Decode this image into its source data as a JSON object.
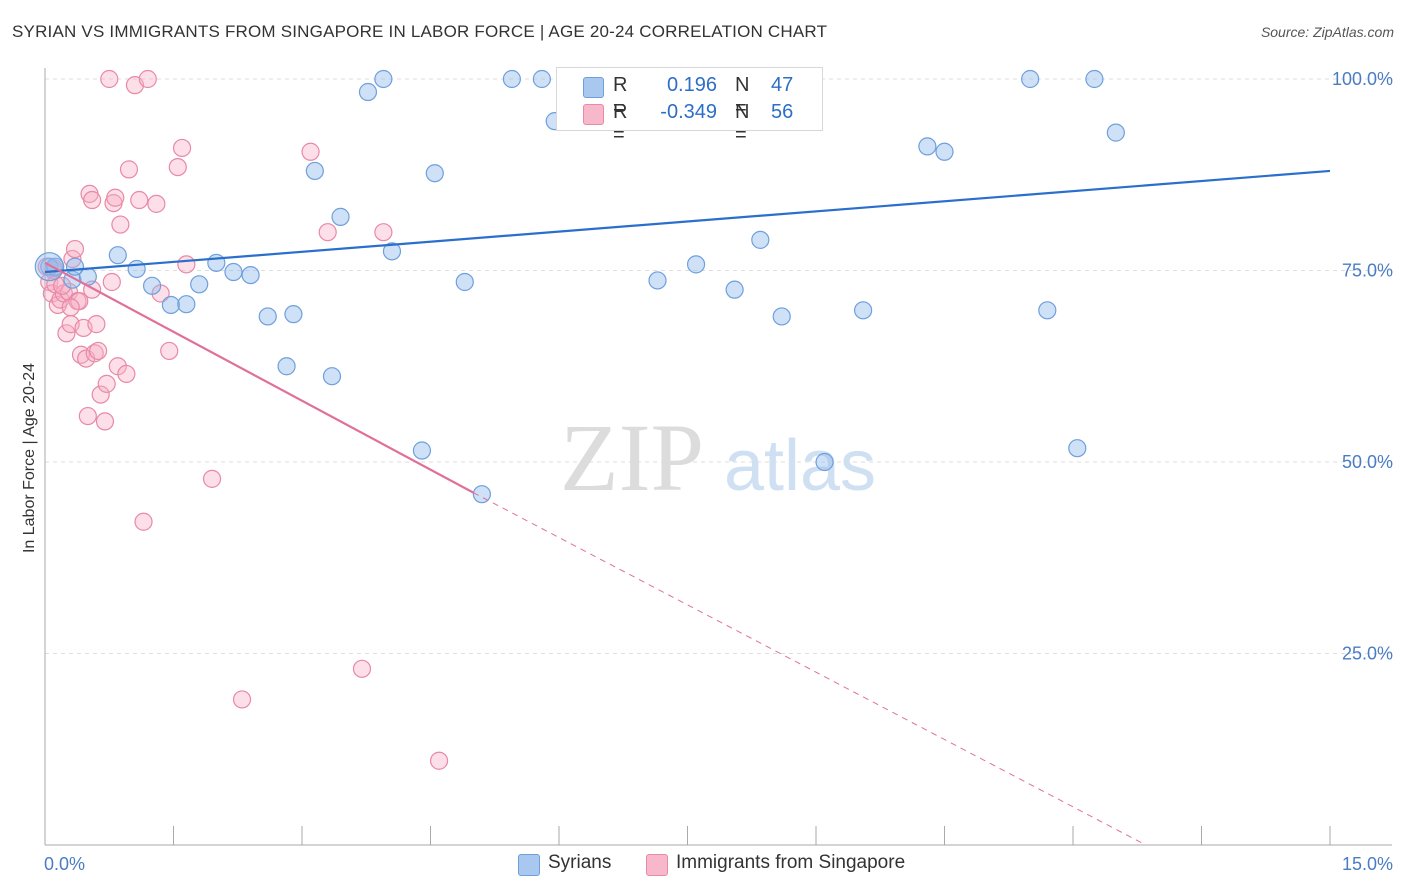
{
  "title": "SYRIAN VS IMMIGRANTS FROM SINGAPORE IN LABOR FORCE | AGE 20-24 CORRELATION CHART",
  "source": "Source: ZipAtlas.com",
  "watermark": {
    "zip": "ZIP",
    "atlas": "atlas"
  },
  "legend": {
    "r_label": "R =",
    "n_label": "N =",
    "rows": [
      {
        "name": "Syrians",
        "r": "0.196",
        "n": "47",
        "fill": "#a9c8ef",
        "stroke": "#6f9fdc"
      },
      {
        "name": "Immigrants from Singapore",
        "r": "-0.349",
        "n": "56",
        "fill": "#f7b8cb",
        "stroke": "#e889a6"
      }
    ]
  },
  "colors": {
    "blue_line": "#2a6fcc",
    "pink_line": "#e0709a",
    "blue_point_fill": "rgba(148,188,236,0.45)",
    "blue_point_stroke": "#6f9fdc",
    "pink_point_fill": "rgba(247,175,198,0.40)",
    "pink_point_stroke": "#e889a6",
    "grid": "#dddddd",
    "tick_text": "#4a7cc4"
  },
  "chart_data": {
    "type": "scatter",
    "title": "SYRIAN VS IMMIGRANTS FROM SINGAPORE IN LABOR FORCE | AGE 20-24 CORRELATION CHART",
    "xlabel": "",
    "ylabel": "In Labor Force | Age 20-24",
    "xlim": [
      0,
      15
    ],
    "ylim": [
      0,
      100
    ],
    "x_tick_labels": [
      "0.0%",
      "15.0%"
    ],
    "y_tick_values": [
      25,
      50,
      75,
      100
    ],
    "y_tick_labels": [
      "25.0%",
      "50.0%",
      "75.0%",
      "100.0%"
    ],
    "grid": true,
    "legend_position": "top-center",
    "series": [
      {
        "name": "Syrians",
        "trend": {
          "x": [
            0,
            15
          ],
          "y": [
            74.8,
            88.0
          ],
          "style": "solid"
        },
        "points": [
          [
            0.05,
            75.5
          ],
          [
            0.12,
            75.5
          ],
          [
            0.32,
            73.8
          ],
          [
            0.5,
            74.2
          ],
          [
            0.85,
            77.0
          ],
          [
            1.07,
            75.2
          ],
          [
            1.25,
            73.0
          ],
          [
            1.47,
            70.5
          ],
          [
            1.65,
            70.6
          ],
          [
            1.8,
            73.2
          ],
          [
            2.0,
            76.0
          ],
          [
            2.2,
            74.8
          ],
          [
            2.4,
            74.4
          ],
          [
            2.6,
            69.0
          ],
          [
            2.82,
            62.5
          ],
          [
            2.9,
            69.3
          ],
          [
            3.15,
            88.0
          ],
          [
            3.35,
            61.2
          ],
          [
            3.45,
            82.0
          ],
          [
            3.77,
            98.3
          ],
          [
            3.95,
            100.0
          ],
          [
            4.05,
            77.5
          ],
          [
            4.4,
            51.5
          ],
          [
            4.55,
            87.7
          ],
          [
            4.9,
            73.5
          ],
          [
            5.1,
            45.8
          ],
          [
            5.45,
            100.0
          ],
          [
            5.8,
            100.0
          ],
          [
            5.95,
            94.5
          ],
          [
            6.3,
            100.0
          ],
          [
            6.5,
            94.4
          ],
          [
            7.15,
            73.7
          ],
          [
            7.45,
            100.0
          ],
          [
            7.6,
            75.8
          ],
          [
            8.05,
            72.5
          ],
          [
            8.35,
            79.0
          ],
          [
            8.6,
            69.0
          ],
          [
            9.1,
            50.0
          ],
          [
            9.55,
            69.8
          ],
          [
            10.3,
            91.2
          ],
          [
            10.5,
            90.5
          ],
          [
            11.5,
            100.0
          ],
          [
            11.7,
            69.8
          ],
          [
            12.05,
            51.8
          ],
          [
            12.25,
            100.0
          ],
          [
            12.5,
            93.0
          ],
          [
            0.35,
            75.5
          ]
        ]
      },
      {
        "name": "Immigrants from Singapore",
        "trend": {
          "x": [
            0,
            5.0
          ],
          "y": [
            76.0,
            46.0
          ],
          "style": "solid",
          "extended": {
            "x": [
              5.0,
              12.85
            ],
            "y": [
              46.0,
              0.0
            ],
            "style": "dashed"
          }
        },
        "points": [
          [
            0.02,
            75.5
          ],
          [
            0.05,
            73.5
          ],
          [
            0.08,
            72.0
          ],
          [
            0.1,
            75.0
          ],
          [
            0.12,
            73.2
          ],
          [
            0.15,
            70.5
          ],
          [
            0.18,
            71.2
          ],
          [
            0.22,
            72.0
          ],
          [
            0.25,
            66.8
          ],
          [
            0.28,
            72.2
          ],
          [
            0.3,
            68.0
          ],
          [
            0.32,
            76.5
          ],
          [
            0.35,
            77.8
          ],
          [
            0.38,
            71.0
          ],
          [
            0.42,
            64.0
          ],
          [
            0.45,
            67.5
          ],
          [
            0.48,
            63.5
          ],
          [
            0.5,
            56.0
          ],
          [
            0.52,
            85.0
          ],
          [
            0.55,
            84.2
          ],
          [
            0.58,
            64.2
          ],
          [
            0.6,
            68.0
          ],
          [
            0.62,
            64.5
          ],
          [
            0.65,
            58.8
          ],
          [
            0.7,
            55.3
          ],
          [
            0.72,
            60.2
          ],
          [
            0.75,
            100.0
          ],
          [
            0.78,
            73.5
          ],
          [
            0.8,
            83.8
          ],
          [
            0.82,
            84.5
          ],
          [
            0.85,
            62.5
          ],
          [
            0.88,
            81.0
          ],
          [
            0.95,
            61.5
          ],
          [
            0.98,
            88.2
          ],
          [
            1.05,
            99.2
          ],
          [
            1.1,
            84.2
          ],
          [
            1.15,
            42.2
          ],
          [
            1.2,
            100.0
          ],
          [
            1.3,
            83.7
          ],
          [
            1.35,
            72.0
          ],
          [
            1.45,
            64.5
          ],
          [
            1.55,
            88.5
          ],
          [
            1.6,
            91.0
          ],
          [
            1.65,
            75.8
          ],
          [
            1.95,
            47.8
          ],
          [
            2.3,
            19.0
          ],
          [
            3.1,
            90.5
          ],
          [
            3.3,
            80.0
          ],
          [
            3.7,
            23.0
          ],
          [
            3.95,
            80.0
          ],
          [
            4.6,
            11.0
          ],
          [
            0.4,
            71.0
          ],
          [
            0.1,
            75.3
          ],
          [
            0.2,
            73.0
          ],
          [
            0.55,
            72.5
          ],
          [
            0.3,
            70.2
          ]
        ]
      }
    ]
  }
}
